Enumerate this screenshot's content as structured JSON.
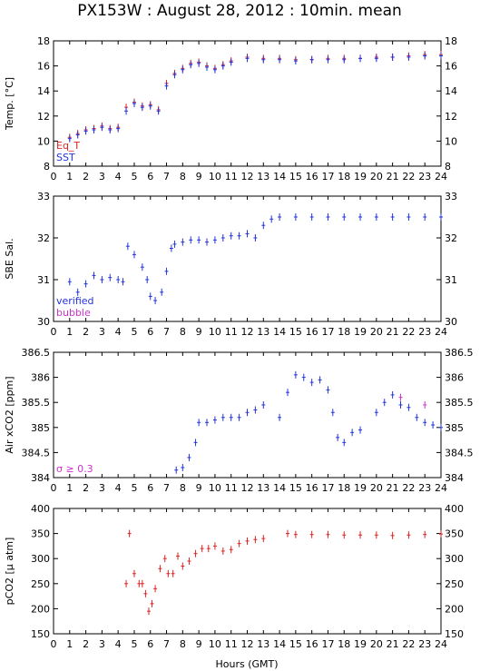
{
  "title": "PX153W : August 28, 2012 : 10min. mean",
  "xlabel": "Hours (GMT)",
  "colors": {
    "red": "#dd2222",
    "blue": "#2233dd",
    "magenta": "#cc33cc"
  },
  "chart_data": [
    {
      "type": "scatter",
      "ylabel": "Temp. [°C]",
      "ylim": [
        8,
        18
      ],
      "yticks": [
        8,
        10,
        12,
        14,
        16,
        18
      ],
      "xlim": [
        0,
        24
      ],
      "legend": [
        {
          "text": "Eq_T",
          "color": "#dd2222"
        },
        {
          "text": "SST",
          "color": "#2233dd"
        }
      ],
      "legend_position": "bottom-left",
      "series": [
        {
          "name": "Eq_T",
          "color": "#dd2222",
          "x": [
            1.0,
            1.5,
            2.0,
            2.5,
            3.0,
            3.5,
            4.0,
            4.5,
            5.0,
            5.5,
            6.0,
            6.5,
            7.0,
            7.5,
            8.0,
            8.5,
            9.0,
            9.5,
            10.0,
            10.5,
            11.0,
            12.0,
            13.0,
            14.0,
            15.0,
            16.0,
            17.0,
            18.0,
            19.0,
            20.0,
            21.0,
            22.0,
            23.0,
            24.0
          ],
          "y": [
            10.3,
            10.6,
            10.9,
            11.0,
            11.2,
            11.0,
            11.1,
            12.7,
            13.1,
            12.8,
            12.9,
            12.5,
            14.6,
            15.4,
            15.8,
            16.2,
            16.3,
            16.0,
            15.8,
            16.1,
            16.4,
            16.7,
            16.6,
            16.6,
            16.5,
            16.5,
            16.6,
            16.6,
            16.6,
            16.7,
            16.7,
            16.8,
            16.9,
            16.9
          ]
        },
        {
          "name": "SST",
          "color": "#2233dd",
          "x": [
            1.0,
            1.5,
            2.0,
            2.5,
            3.0,
            3.5,
            4.0,
            4.5,
            5.0,
            5.5,
            6.0,
            6.5,
            7.0,
            7.5,
            8.0,
            8.5,
            9.0,
            9.5,
            10.0,
            10.5,
            11.0,
            12.0,
            13.0,
            14.0,
            15.0,
            16.0,
            17.0,
            18.0,
            19.0,
            20.0,
            21.0,
            22.0,
            23.0,
            24.0
          ],
          "y": [
            10.2,
            10.5,
            10.8,
            10.9,
            11.1,
            10.9,
            11.0,
            12.4,
            13.0,
            12.7,
            12.8,
            12.4,
            14.4,
            15.3,
            15.7,
            16.1,
            16.2,
            15.9,
            15.7,
            16.0,
            16.3,
            16.6,
            16.5,
            16.5,
            16.4,
            16.5,
            16.5,
            16.5,
            16.6,
            16.6,
            16.7,
            16.7,
            16.8,
            16.8
          ]
        }
      ]
    },
    {
      "type": "scatter",
      "ylabel": "SBE Sal.",
      "ylim": [
        30,
        33
      ],
      "yticks": [
        30,
        31,
        32,
        33
      ],
      "xlim": [
        0,
        24
      ],
      "legend": [
        {
          "text": "verified",
          "color": "#2233dd"
        },
        {
          "text": "bubble",
          "color": "#cc33cc"
        }
      ],
      "legend_position": "bottom-left",
      "series": [
        {
          "name": "verified",
          "color": "#2233dd",
          "x": [
            1.0,
            1.5,
            2.0,
            2.5,
            3.0,
            3.5,
            4.0,
            4.3,
            4.6,
            5.0,
            5.5,
            5.8,
            6.0,
            6.3,
            6.7,
            7.0,
            7.3,
            7.5,
            8.0,
            8.5,
            9.0,
            9.5,
            10.0,
            10.5,
            11.0,
            11.5,
            12.0,
            12.5,
            13.0,
            13.5,
            14.0,
            15.0,
            16.0,
            17.0,
            18.0,
            19.0,
            20.0,
            21.0,
            22.0,
            23.0,
            24.0
          ],
          "y": [
            30.95,
            30.7,
            30.9,
            31.1,
            31.0,
            31.05,
            31.0,
            30.95,
            31.8,
            31.6,
            31.3,
            31.0,
            30.6,
            30.5,
            30.7,
            31.2,
            31.75,
            31.85,
            31.9,
            31.95,
            31.95,
            31.9,
            31.95,
            32.0,
            32.05,
            32.05,
            32.1,
            32.0,
            32.3,
            32.45,
            32.5,
            32.5,
            32.5,
            32.5,
            32.5,
            32.5,
            32.5,
            32.5,
            32.5,
            32.5,
            32.5
          ]
        }
      ]
    },
    {
      "type": "scatter",
      "ylabel": "Air xCO2 [ppm]",
      "ylim": [
        384,
        386.5
      ],
      "yticks": [
        384,
        384.5,
        385,
        385.5,
        386,
        386.5
      ],
      "xlim": [
        0,
        24
      ],
      "legend": [
        {
          "text": "σ ≥ 0.3",
          "color": "#cc33cc"
        }
      ],
      "legend_position": "bottom-left",
      "series": [
        {
          "name": "",
          "color": "#2233dd",
          "x": [
            7.6,
            8.0,
            8.4,
            8.8,
            9.0,
            9.5,
            10.0,
            10.5,
            11.0,
            11.5,
            12.0,
            12.5,
            13.0,
            14.0,
            14.5,
            15.0,
            15.5,
            16.0,
            16.5,
            17.0,
            17.3,
            17.6,
            18.0,
            18.5,
            19.0,
            20.0,
            20.5,
            21.0,
            21.5,
            22.0,
            22.5,
            23.0,
            23.5,
            24.0
          ],
          "y": [
            384.15,
            384.2,
            384.4,
            384.7,
            385.1,
            385.1,
            385.15,
            385.2,
            385.2,
            385.2,
            385.3,
            385.35,
            385.45,
            385.2,
            385.7,
            386.05,
            386.0,
            385.9,
            385.95,
            385.75,
            385.3,
            384.8,
            384.7,
            384.9,
            384.95,
            385.3,
            385.5,
            385.65,
            385.45,
            385.4,
            385.2,
            385.1,
            385.05,
            385.0
          ]
        },
        {
          "name": "",
          "color": "#cc33cc",
          "x": [
            21.5,
            23.0
          ],
          "y": [
            385.6,
            385.45
          ]
        }
      ]
    },
    {
      "type": "scatter",
      "ylabel": "pCO2 [μ atm]",
      "ylim": [
        150,
        400
      ],
      "yticks": [
        150,
        200,
        250,
        300,
        350,
        400
      ],
      "xlim": [
        0,
        24
      ],
      "series": [
        {
          "name": "",
          "color": "#dd2222",
          "x": [
            4.5,
            4.7,
            5.0,
            5.3,
            5.5,
            5.7,
            5.9,
            6.1,
            6.3,
            6.6,
            6.9,
            7.1,
            7.4,
            7.7,
            8.0,
            8.4,
            8.8,
            9.2,
            9.6,
            10.0,
            10.5,
            11.0,
            11.5,
            12.0,
            12.5,
            13.0,
            14.5,
            15.0,
            16.0,
            17.0,
            18.0,
            19.0,
            20.0,
            21.0,
            22.0,
            23.0,
            24.0
          ],
          "y": [
            250,
            350,
            270,
            250,
            250,
            230,
            195,
            210,
            240,
            280,
            300,
            270,
            270,
            305,
            285,
            295,
            310,
            320,
            320,
            325,
            315,
            318,
            330,
            335,
            338,
            340,
            350,
            348,
            348,
            348,
            347,
            347,
            347,
            346,
            347,
            348,
            349
          ]
        }
      ]
    }
  ]
}
